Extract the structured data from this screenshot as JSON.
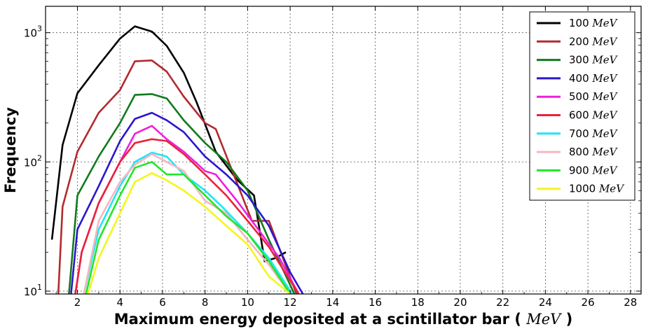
{
  "chart_data": {
    "type": "line",
    "xlabel_prefix": "Maximum energy deposited at a scintillator bar ( ",
    "xlabel_unit": "MeV",
    "xlabel_suffix": " )",
    "ylabel": "Frequency",
    "xlim": [
      0.5,
      28.5
    ],
    "ylim": [
      9.5,
      1600
    ],
    "yscale": "log",
    "grid": true,
    "legend_position": "top-right",
    "x_ticks": [
      2,
      4,
      6,
      8,
      10,
      12,
      14,
      16,
      18,
      20,
      22,
      24,
      26,
      28
    ],
    "x_tick_labels": [
      "2",
      "4",
      "6",
      "8",
      "10",
      "12",
      "14",
      "16",
      "18",
      "20",
      "22",
      "24",
      "26",
      "28"
    ],
    "y_ticks": [
      {
        "value": 10,
        "base": "10",
        "exp": "1"
      },
      {
        "value": 100,
        "base": "10",
        "exp": "2"
      },
      {
        "value": 1000,
        "base": "10",
        "exp": "3"
      }
    ],
    "series": [
      {
        "name": "100",
        "unit": "MeV",
        "color": "#000000",
        "x": [
          0.8,
          1.3,
          2,
          3,
          4,
          4.7,
          5.5,
          6.2,
          7,
          7.6,
          8.5,
          9.5,
          10.3,
          10.8,
          11.3,
          11.8
        ],
        "y": [
          25,
          135,
          340,
          560,
          900,
          1120,
          1020,
          790,
          490,
          290,
          120,
          73,
          55,
          17,
          18,
          20
        ]
      },
      {
        "name": "200",
        "unit": "MeV",
        "color": "#b22a2e",
        "x": [
          1.1,
          1.3,
          2,
          3,
          4,
          4.7,
          5.5,
          6.2,
          7,
          8,
          8.5,
          10.2,
          10.8,
          11,
          12.3
        ],
        "y": [
          9.5,
          45,
          120,
          240,
          360,
          600,
          610,
          500,
          320,
          200,
          180,
          35,
          35,
          35,
          9.5
        ]
      },
      {
        "name": "300",
        "unit": "MeV",
        "color": "#127a1e",
        "x": [
          1.6,
          2,
          3,
          4,
          4.7,
          5.5,
          6.2,
          7,
          8,
          9,
          10,
          11,
          12.2
        ],
        "y": [
          9.5,
          55,
          110,
          200,
          330,
          335,
          310,
          210,
          140,
          100,
          60,
          25,
          9.5
        ]
      },
      {
        "name": "400",
        "unit": "MeV",
        "color": "#2b16cf",
        "x": [
          1.7,
          2,
          3,
          4,
          4.7,
          5.5,
          6.2,
          7,
          8,
          9,
          10,
          11,
          12,
          12.6
        ],
        "y": [
          9.5,
          30,
          65,
          145,
          215,
          240,
          210,
          170,
          110,
          80,
          55,
          32,
          14,
          9.5
        ]
      },
      {
        "name": "500",
        "unit": "MeV",
        "color": "#ee1fe0",
        "x": [
          1.9,
          2.2,
          3,
          4,
          4.7,
          5.5,
          6.2,
          7,
          8,
          8.5,
          9.5,
          10.5,
          11.5,
          12.4
        ],
        "y": [
          9.5,
          20,
          48,
          100,
          165,
          190,
          150,
          120,
          85,
          80,
          50,
          30,
          18,
          9.5
        ]
      },
      {
        "name": "600",
        "unit": "MeV",
        "color": "#e8243a",
        "x": [
          1.9,
          2.2,
          3,
          4,
          4.7,
          5.5,
          6.2,
          7,
          8,
          9,
          10,
          11,
          12.4
        ],
        "y": [
          9.5,
          20,
          48,
          100,
          140,
          150,
          145,
          115,
          80,
          55,
          35,
          22,
          9.5
        ]
      },
      {
        "name": "700",
        "unit": "MeV",
        "color": "#1ee6f5",
        "x": [
          2.3,
          3,
          4,
          4.7,
          5.5,
          6.2,
          7,
          8,
          8.8,
          10,
          11,
          12.1
        ],
        "y": [
          9.5,
          30,
          65,
          100,
          118,
          110,
          80,
          60,
          45,
          28,
          18,
          9.5
        ]
      },
      {
        "name": "800",
        "unit": "MeV",
        "color": "#f5b6c2",
        "x": [
          2.3,
          3,
          4,
          4.7,
          5.5,
          6.2,
          7,
          8,
          9,
          10,
          11,
          12
        ],
        "y": [
          9.5,
          35,
          70,
          95,
          115,
          100,
          85,
          50,
          40,
          25,
          16,
          9.5
        ]
      },
      {
        "name": "900",
        "unit": "MeV",
        "color": "#22e628",
        "x": [
          2.4,
          3,
          4,
          4.7,
          5.5,
          6.2,
          7,
          8,
          9,
          10,
          11,
          12
        ],
        "y": [
          9.5,
          25,
          55,
          90,
          100,
          80,
          80,
          55,
          38,
          28,
          17,
          9.5
        ]
      },
      {
        "name": "1000",
        "unit": "MeV",
        "color": "#f5f51e",
        "x": [
          2.5,
          3,
          4,
          4.7,
          5.5,
          6.2,
          7,
          8,
          9,
          10,
          11,
          12
        ],
        "y": [
          9.5,
          18,
          40,
          70,
          82,
          72,
          60,
          45,
          32,
          23,
          13,
          9.5
        ]
      }
    ]
  }
}
